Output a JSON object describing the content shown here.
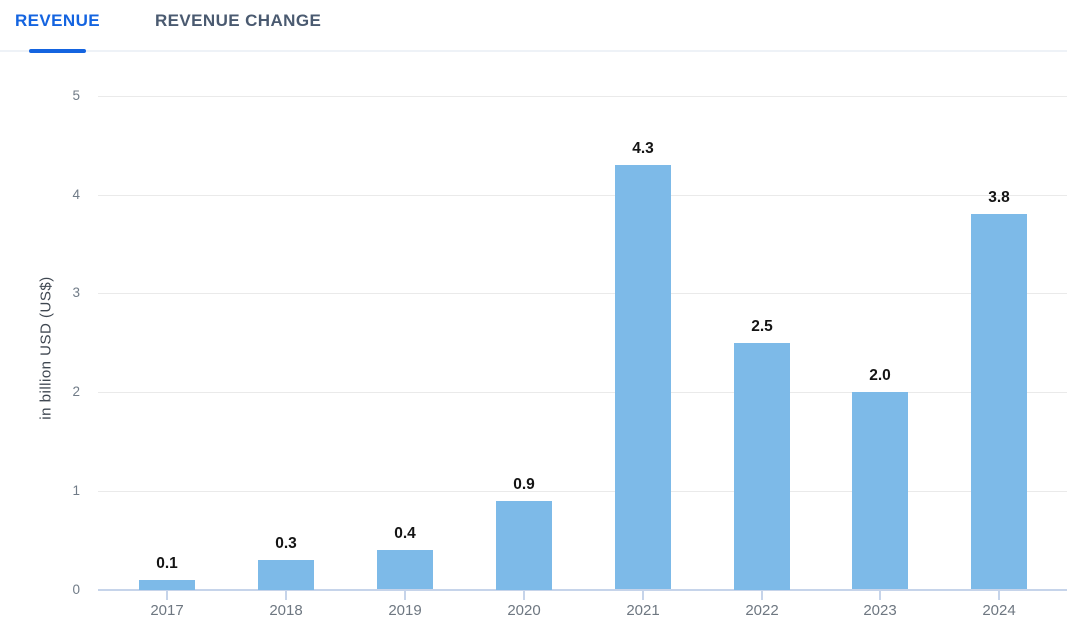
{
  "tabs": [
    {
      "label": "REVENUE",
      "active": true
    },
    {
      "label": "REVENUE CHANGE",
      "active": false
    }
  ],
  "chart_data": {
    "type": "bar",
    "categories": [
      "2017",
      "2018",
      "2019",
      "2020",
      "2021",
      "2022",
      "2023",
      "2024"
    ],
    "values": [
      0.1,
      0.3,
      0.4,
      0.9,
      4.3,
      2.5,
      2.0,
      3.8
    ],
    "value_labels": [
      "0.1",
      "0.3",
      "0.4",
      "0.9",
      "4.3",
      "2.5",
      "2.0",
      "3.8"
    ],
    "title": "",
    "xlabel": "",
    "ylabel": "in billion USD (US$)",
    "y_ticks": [
      "0",
      "1",
      "2",
      "3",
      "4",
      "5"
    ],
    "ylim": [
      0,
      5
    ],
    "grid": true,
    "legend": false
  },
  "colors": {
    "bar": "#7dbae8",
    "accent_blue": "#1464e0",
    "inactive_tab": "#4a5a70",
    "axis_line": "#c6d4ea",
    "gridline": "#eaeaea",
    "y_tick_label": "#707b87",
    "x_tick_label": "#6e7781",
    "value_label": "#141414",
    "y_axis_title": "#3f4751",
    "divider": "#eef2f7"
  }
}
